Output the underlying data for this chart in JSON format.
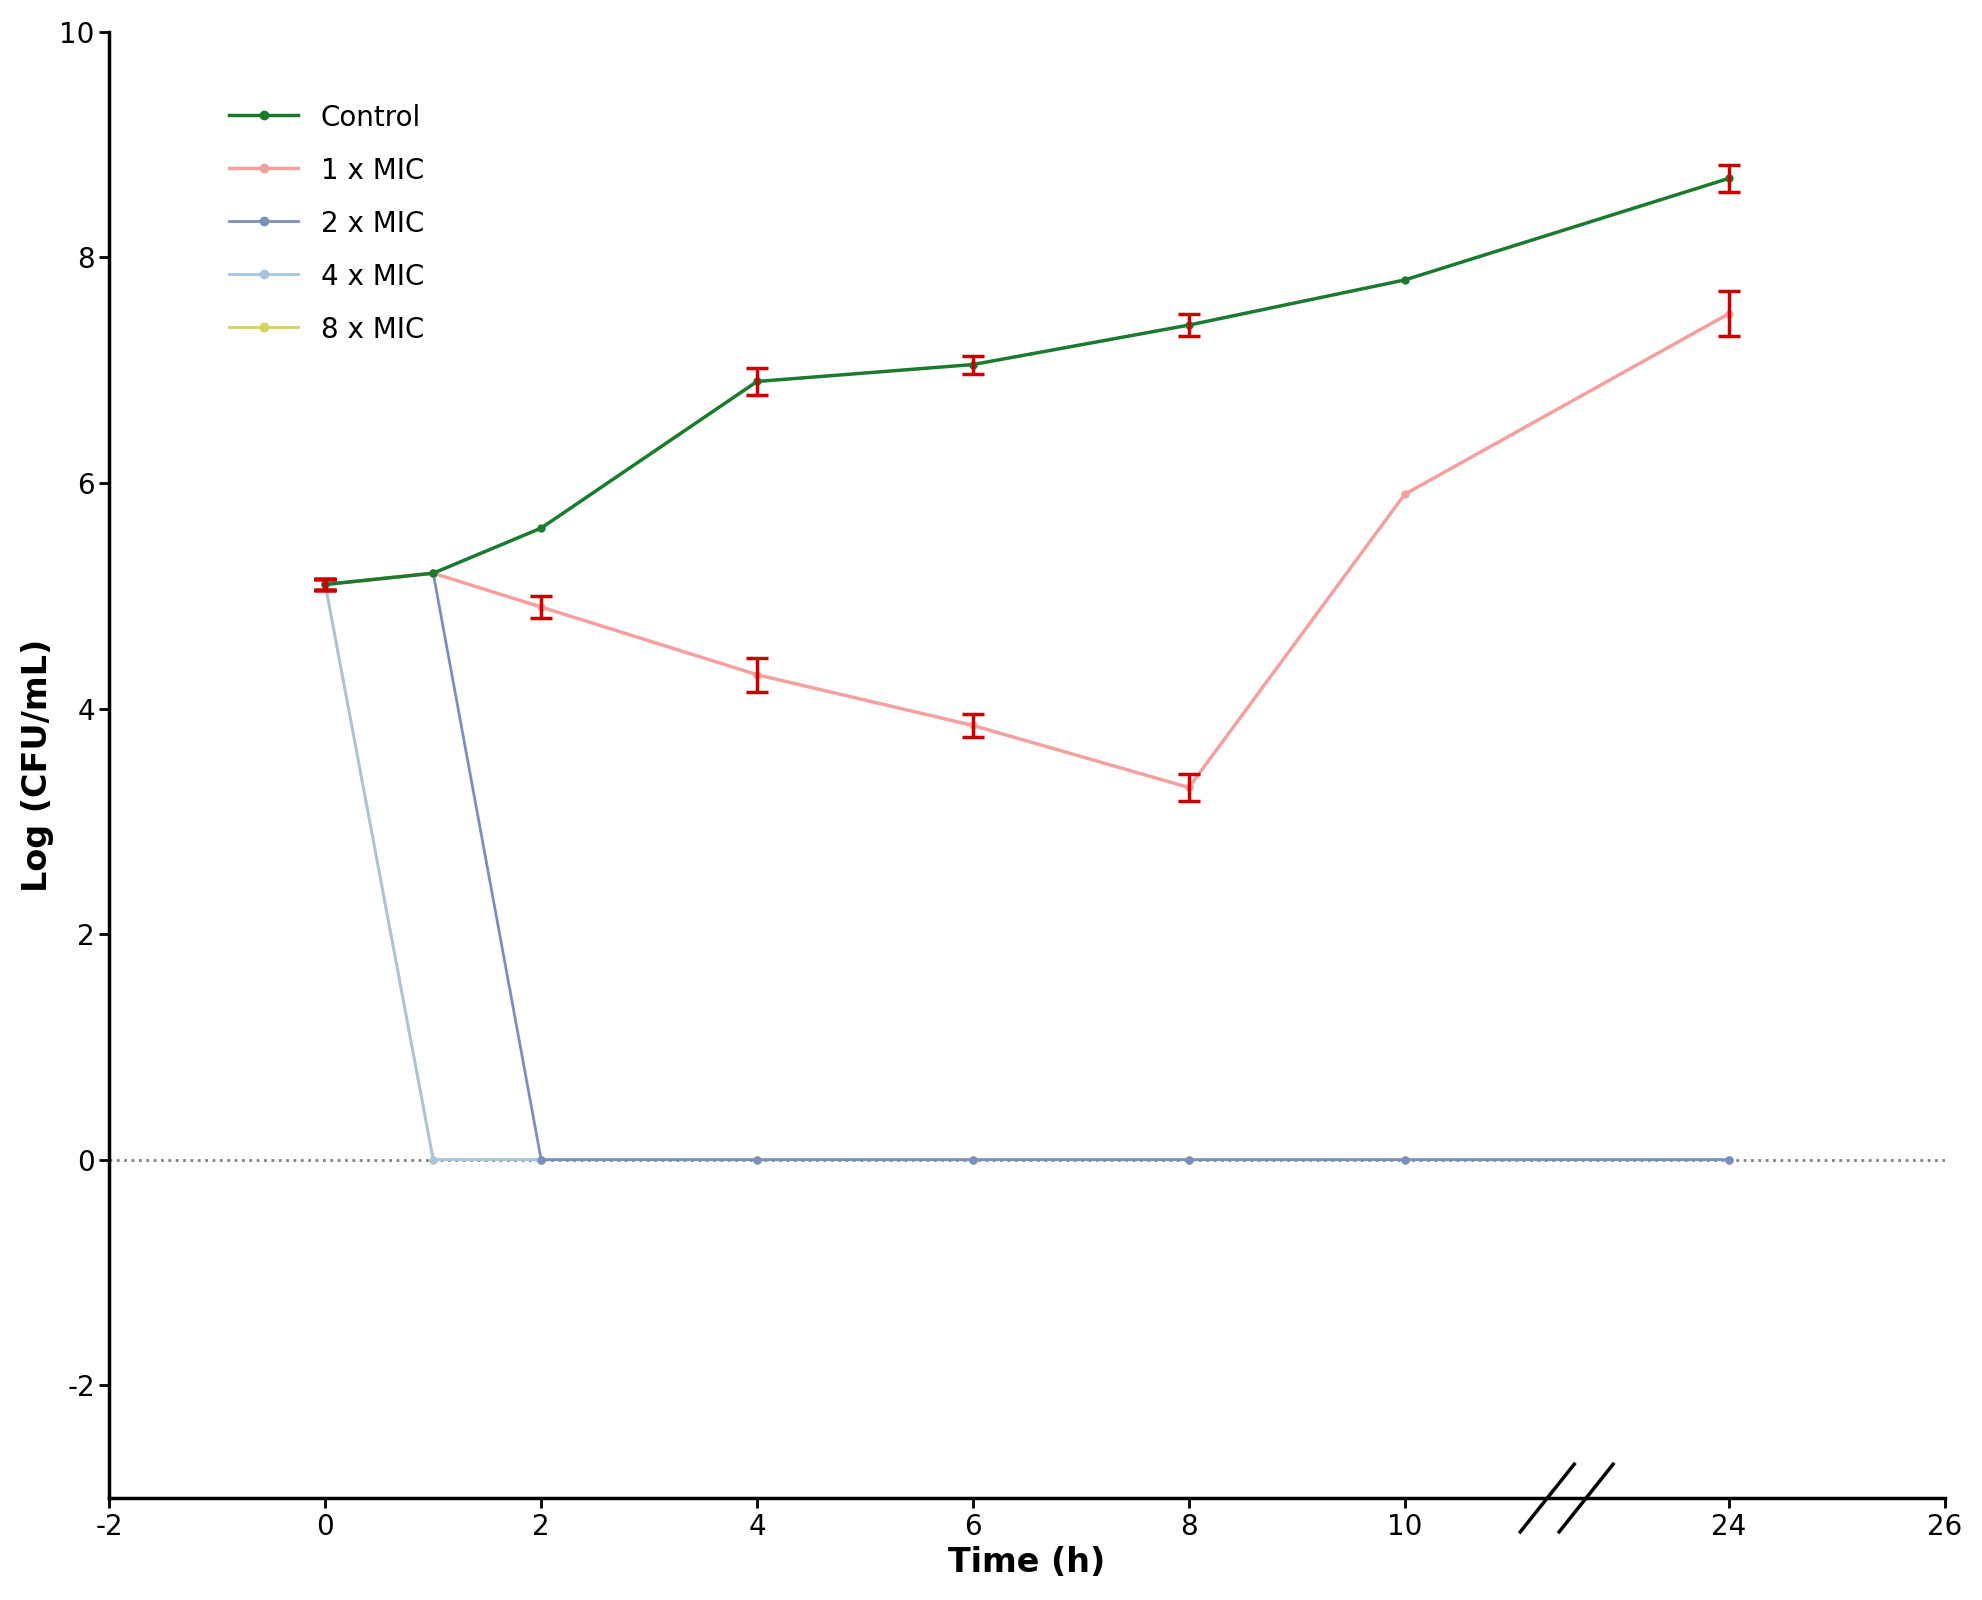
{
  "series": [
    {
      "label": "Control",
      "color": "#1a7a2e",
      "linewidth": 2.5,
      "x": [
        0,
        1,
        2,
        4,
        6,
        8,
        10,
        24
      ],
      "y": [
        5.1,
        5.2,
        5.6,
        6.9,
        7.05,
        7.4,
        7.8,
        8.7
      ],
      "yerr": [
        0.05,
        0.0,
        0.0,
        0.12,
        0.08,
        0.1,
        0.0,
        0.12
      ],
      "marker": "o",
      "markersize": 5,
      "zorder": 5
    },
    {
      "label": "1 x MIC",
      "color": "#f4a0a0",
      "linewidth": 2.5,
      "x": [
        0,
        1,
        2,
        4,
        6,
        8,
        10,
        24
      ],
      "y": [
        5.1,
        5.2,
        4.9,
        4.3,
        3.85,
        3.3,
        5.9,
        7.5
      ],
      "yerr": [
        0.05,
        0.0,
        0.1,
        0.15,
        0.1,
        0.12,
        0.0,
        0.2
      ],
      "marker": "o",
      "markersize": 5,
      "zorder": 4
    },
    {
      "label": "2 x MIC",
      "color": "#7b8fbf",
      "linewidth": 2.0,
      "x": [
        0,
        1,
        2,
        4,
        6,
        8,
        10,
        24
      ],
      "y": [
        5.1,
        5.2,
        0.0,
        0.0,
        0.0,
        0.0,
        0.0,
        0.0
      ],
      "yerr": [
        0.05,
        0.0,
        0.0,
        0.0,
        0.0,
        0.0,
        0.0,
        0.0
      ],
      "marker": "o",
      "markersize": 5,
      "zorder": 3
    },
    {
      "label": "4 x MIC",
      "color": "#a8c4e0",
      "linewidth": 2.0,
      "x": [
        0,
        1,
        2,
        4,
        6,
        8,
        10,
        24
      ],
      "y": [
        5.1,
        0.0,
        0.0,
        0.0,
        0.0,
        0.0,
        0.0,
        0.0
      ],
      "yerr": [
        0.05,
        0.0,
        0.0,
        0.0,
        0.0,
        0.0,
        0.0,
        0.0
      ],
      "marker": "o",
      "markersize": 5,
      "zorder": 2
    },
    {
      "label": "8 x MIC",
      "color": "#d4d45a",
      "linewidth": 2.0,
      "x": [
        0,
        1,
        2,
        4,
        6,
        8,
        10,
        24
      ],
      "y": [
        5.1,
        0.0,
        0.0,
        0.0,
        0.0,
        0.0,
        0.0,
        0.0
      ],
      "yerr": [
        0.05,
        0.0,
        0.0,
        0.0,
        0.0,
        0.0,
        0.0,
        0.0
      ],
      "marker": "o",
      "markersize": 5,
      "zorder": 1
    }
  ],
  "xlim": [
    -2,
    26
  ],
  "ylim": [
    -3,
    10
  ],
  "xticks_real": [
    -2,
    0,
    2,
    4,
    6,
    8,
    10,
    24,
    26
  ],
  "yticks": [
    -2,
    0,
    2,
    4,
    6,
    8,
    10
  ],
  "xlabel": "Time (h)",
  "ylabel": "Log (CFU/mL)",
  "xlabel_fontsize": 24,
  "ylabel_fontsize": 24,
  "tick_fontsize": 20,
  "legend_fontsize": 20,
  "dotted_line_y": 0.0,
  "background_color": "#ffffff",
  "error_color": "#cc0000",
  "axis_linewidth": 2.5,
  "x_transform_map": {
    "-2": -2,
    "0": 0,
    "1": 1,
    "2": 2,
    "4": 4,
    "6": 6,
    "8": 8,
    "10": 10,
    "24": 13,
    "26": 15
  }
}
